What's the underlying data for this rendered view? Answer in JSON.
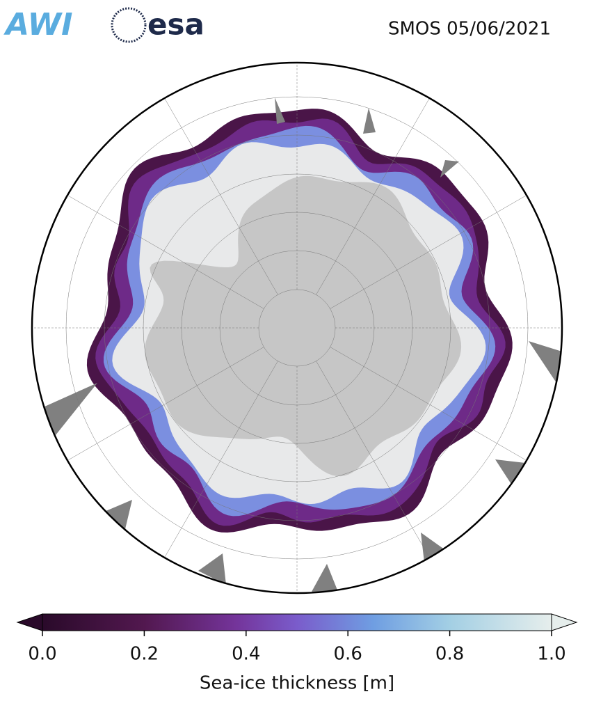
{
  "header": {
    "logos": [
      "AWI",
      "esa"
    ],
    "title": "SMOS 05/06/2021"
  },
  "colorbar": {
    "label": "Sea-ice thickness [m]",
    "range": [
      0,
      1
    ],
    "ticks": [
      {
        "value": 0,
        "label": "0.0"
      },
      0.2,
      0.4,
      0.6,
      0.8,
      {
        "value": 1,
        "label": "1.0"
      }
    ]
  }
}
